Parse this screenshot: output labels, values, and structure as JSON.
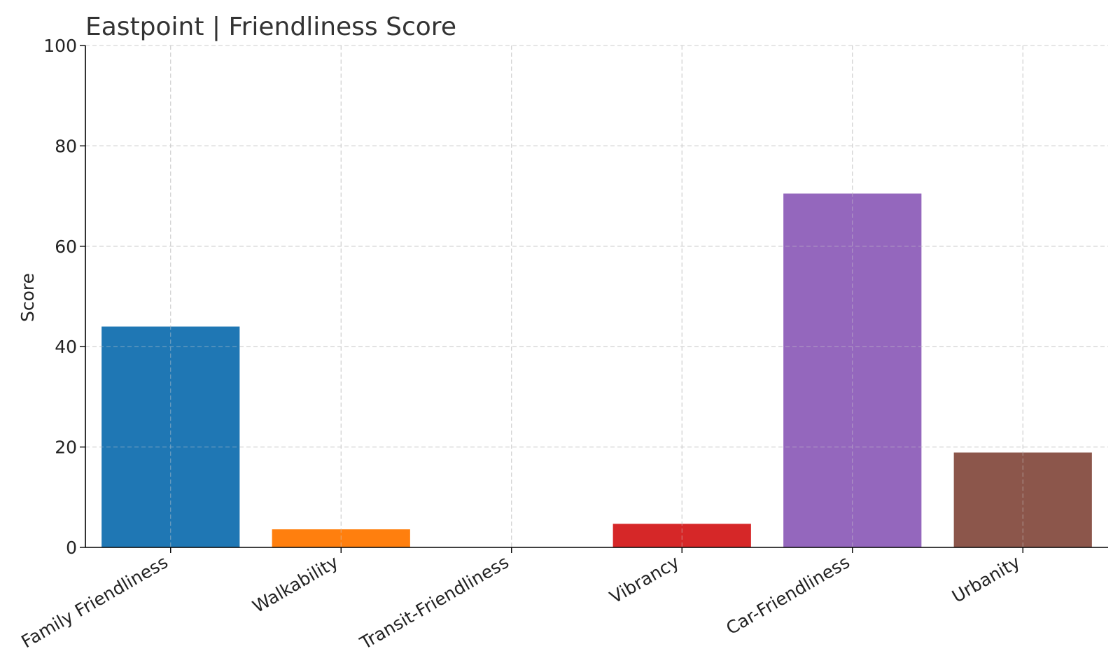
{
  "chart_data": {
    "type": "bar",
    "title": "Eastpoint |  Friendliness Score",
    "xlabel": "",
    "ylabel": "Score",
    "ylim": [
      0,
      100
    ],
    "yticks": [
      0,
      20,
      40,
      60,
      80,
      100
    ],
    "grid": true,
    "categories": [
      "Family Friendliness",
      "Walkability",
      "Transit-Friendliness",
      "Vibrancy",
      "Car-Friendliness",
      "Urbanity"
    ],
    "values": [
      44,
      3.6,
      0,
      4.7,
      70.5,
      18.9
    ],
    "colors": [
      "#1f77b4",
      "#ff7f0e",
      "#2ca02c",
      "#d62728",
      "#9467bd",
      "#8c564b"
    ]
  }
}
